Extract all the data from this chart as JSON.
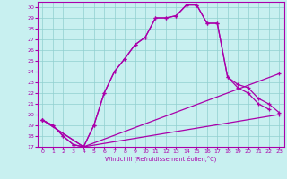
{
  "bg_color": "#c8f0f0",
  "line_color": "#aa00aa",
  "grid_color": "#90d0d0",
  "xlim": [
    -0.5,
    23.5
  ],
  "ylim": [
    17,
    30.5
  ],
  "xticks": [
    0,
    1,
    2,
    3,
    4,
    5,
    6,
    7,
    8,
    9,
    10,
    11,
    12,
    13,
    14,
    15,
    16,
    17,
    18,
    19,
    20,
    21,
    22,
    23
  ],
  "yticks": [
    17,
    18,
    19,
    20,
    21,
    22,
    23,
    24,
    25,
    26,
    27,
    28,
    29,
    30
  ],
  "xlabel": "Windchill (Refroidissement éolien,°C)",
  "line1_x": [
    0,
    1,
    2,
    3,
    4,
    5,
    6,
    7,
    8,
    9,
    10,
    11,
    12,
    13,
    14,
    15,
    16,
    17,
    18,
    19,
    20,
    21,
    22
  ],
  "line1_y": [
    19.5,
    19.0,
    18.0,
    17.2,
    17.0,
    19.0,
    22.0,
    24.0,
    25.2,
    26.5,
    27.2,
    29.0,
    29.0,
    29.2,
    30.2,
    30.2,
    28.5,
    28.5,
    23.5,
    22.5,
    22.0,
    21.0,
    20.5
  ],
  "line2_x": [
    0,
    1,
    2,
    3,
    4,
    5,
    6,
    7,
    8,
    9,
    10,
    11,
    12,
    13,
    14,
    15,
    16,
    17,
    18,
    19,
    20,
    21,
    22,
    23
  ],
  "line2_y": [
    19.5,
    19.0,
    18.0,
    17.2,
    17.0,
    19.0,
    22.0,
    24.0,
    25.2,
    26.5,
    27.2,
    29.0,
    29.0,
    29.2,
    30.2,
    30.2,
    28.5,
    28.5,
    23.5,
    22.8,
    22.5,
    21.5,
    21.0,
    20.2
  ],
  "line3_x": [
    0,
    4,
    23
  ],
  "line3_y": [
    19.5,
    17.0,
    23.8
  ],
  "line4_x": [
    0,
    4,
    23
  ],
  "line4_y": [
    19.5,
    17.0,
    20.0
  ]
}
